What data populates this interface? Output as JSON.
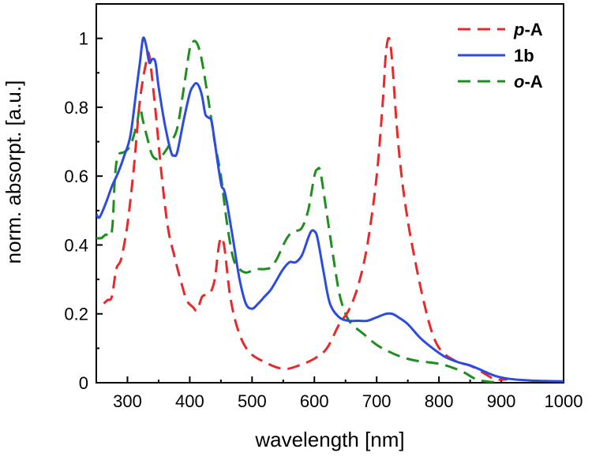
{
  "chart_data": {
    "type": "line",
    "title": "",
    "xlabel": "wavelength [nm]",
    "ylabel": "norm. absorpt. [a.u.]",
    "xlim": [
      250,
      1000
    ],
    "ylim": [
      0,
      1.1
    ],
    "x_ticks": [
      300,
      400,
      500,
      600,
      700,
      800,
      900,
      1000
    ],
    "y_ticks": [
      0,
      0.2,
      0.4,
      0.6,
      0.8,
      1
    ],
    "legend": {
      "placement": "top-right"
    },
    "series": [
      {
        "name": "p-A",
        "name_prefix": "p",
        "name_suffix": "-A",
        "color": "#e8292b",
        "dash": "dashed",
        "points": [
          [
            262,
            0.23
          ],
          [
            268,
            0.24
          ],
          [
            275,
            0.25
          ],
          [
            282,
            0.33
          ],
          [
            290,
            0.36
          ],
          [
            300,
            0.46
          ],
          [
            310,
            0.62
          ],
          [
            320,
            0.82
          ],
          [
            330,
            0.93
          ],
          [
            335,
            0.95
          ],
          [
            345,
            0.79
          ],
          [
            355,
            0.6
          ],
          [
            365,
            0.45
          ],
          [
            375,
            0.37
          ],
          [
            385,
            0.3
          ],
          [
            395,
            0.24
          ],
          [
            405,
            0.22
          ],
          [
            412,
            0.21
          ],
          [
            420,
            0.25
          ],
          [
            432,
            0.26
          ],
          [
            440,
            0.3
          ],
          [
            448,
            0.41
          ],
          [
            455,
            0.4
          ],
          [
            465,
            0.25
          ],
          [
            478,
            0.15
          ],
          [
            495,
            0.09
          ],
          [
            520,
            0.06
          ],
          [
            550,
            0.04
          ],
          [
            575,
            0.05
          ],
          [
            600,
            0.07
          ],
          [
            620,
            0.1
          ],
          [
            640,
            0.17
          ],
          [
            655,
            0.21
          ],
          [
            670,
            0.28
          ],
          [
            685,
            0.4
          ],
          [
            700,
            0.6
          ],
          [
            710,
            0.82
          ],
          [
            715,
            0.96
          ],
          [
            720,
            1.0
          ],
          [
            725,
            0.93
          ],
          [
            732,
            0.75
          ],
          [
            740,
            0.6
          ],
          [
            750,
            0.47
          ],
          [
            760,
            0.37
          ],
          [
            775,
            0.24
          ],
          [
            790,
            0.14
          ],
          [
            805,
            0.09
          ],
          [
            830,
            0.06
          ],
          [
            850,
            0.05
          ],
          [
            870,
            0.03
          ],
          [
            890,
            0.01
          ],
          [
            910,
            0.01
          ]
        ]
      },
      {
        "name": "1b",
        "color": "#2c4be0",
        "dash": "solid",
        "points": [
          [
            250,
            0.49
          ],
          [
            255,
            0.48
          ],
          [
            265,
            0.52
          ],
          [
            275,
            0.57
          ],
          [
            285,
            0.61
          ],
          [
            295,
            0.66
          ],
          [
            305,
            0.72
          ],
          [
            315,
            0.86
          ],
          [
            320,
            0.93
          ],
          [
            325,
            1.0
          ],
          [
            330,
            0.98
          ],
          [
            335,
            0.93
          ],
          [
            340,
            0.94
          ],
          [
            345,
            0.93
          ],
          [
            350,
            0.86
          ],
          [
            360,
            0.75
          ],
          [
            370,
            0.67
          ],
          [
            375,
            0.66
          ],
          [
            380,
            0.67
          ],
          [
            390,
            0.76
          ],
          [
            400,
            0.84
          ],
          [
            405,
            0.86
          ],
          [
            410,
            0.87
          ],
          [
            415,
            0.86
          ],
          [
            420,
            0.83
          ],
          [
            425,
            0.78
          ],
          [
            430,
            0.77
          ],
          [
            435,
            0.76
          ],
          [
            440,
            0.7
          ],
          [
            450,
            0.58
          ],
          [
            455,
            0.56
          ],
          [
            460,
            0.52
          ],
          [
            470,
            0.41
          ],
          [
            480,
            0.3
          ],
          [
            490,
            0.23
          ],
          [
            500,
            0.215
          ],
          [
            510,
            0.23
          ],
          [
            520,
            0.25
          ],
          [
            530,
            0.27
          ],
          [
            540,
            0.3
          ],
          [
            550,
            0.33
          ],
          [
            560,
            0.35
          ],
          [
            570,
            0.35
          ],
          [
            580,
            0.37
          ],
          [
            590,
            0.42
          ],
          [
            595,
            0.44
          ],
          [
            600,
            0.44
          ],
          [
            605,
            0.42
          ],
          [
            615,
            0.32
          ],
          [
            625,
            0.23
          ],
          [
            640,
            0.19
          ],
          [
            655,
            0.18
          ],
          [
            670,
            0.18
          ],
          [
            685,
            0.18
          ],
          [
            700,
            0.19
          ],
          [
            715,
            0.2
          ],
          [
            725,
            0.2
          ],
          [
            735,
            0.19
          ],
          [
            750,
            0.17
          ],
          [
            770,
            0.13
          ],
          [
            790,
            0.1
          ],
          [
            810,
            0.075
          ],
          [
            830,
            0.06
          ],
          [
            850,
            0.05
          ],
          [
            870,
            0.035
          ],
          [
            890,
            0.02
          ],
          [
            910,
            0.012
          ],
          [
            940,
            0.007
          ],
          [
            970,
            0.005
          ],
          [
            1000,
            0.004
          ]
        ]
      },
      {
        "name": "o-A",
        "name_prefix": "o",
        "name_suffix": "-A",
        "color": "#1e8e1e",
        "dash": "dashed",
        "points": [
          [
            250,
            0.42
          ],
          [
            258,
            0.42
          ],
          [
            265,
            0.43
          ],
          [
            275,
            0.44
          ],
          [
            280,
            0.6
          ],
          [
            285,
            0.66
          ],
          [
            295,
            0.67
          ],
          [
            305,
            0.69
          ],
          [
            315,
            0.75
          ],
          [
            320,
            0.8
          ],
          [
            325,
            0.76
          ],
          [
            332,
            0.71
          ],
          [
            340,
            0.66
          ],
          [
            350,
            0.65
          ],
          [
            360,
            0.67
          ],
          [
            370,
            0.7
          ],
          [
            380,
            0.74
          ],
          [
            390,
            0.85
          ],
          [
            400,
            0.97
          ],
          [
            405,
            0.99
          ],
          [
            410,
            0.99
          ],
          [
            415,
            0.97
          ],
          [
            420,
            0.93
          ],
          [
            430,
            0.82
          ],
          [
            440,
            0.7
          ],
          [
            450,
            0.6
          ],
          [
            460,
            0.46
          ],
          [
            470,
            0.36
          ],
          [
            480,
            0.33
          ],
          [
            490,
            0.32
          ],
          [
            500,
            0.325
          ],
          [
            510,
            0.33
          ],
          [
            520,
            0.33
          ],
          [
            530,
            0.335
          ],
          [
            540,
            0.36
          ],
          [
            550,
            0.4
          ],
          [
            560,
            0.43
          ],
          [
            570,
            0.44
          ],
          [
            580,
            0.45
          ],
          [
            590,
            0.5
          ],
          [
            600,
            0.6
          ],
          [
            605,
            0.62
          ],
          [
            610,
            0.61
          ],
          [
            620,
            0.49
          ],
          [
            630,
            0.37
          ],
          [
            640,
            0.26
          ],
          [
            650,
            0.2
          ],
          [
            660,
            0.17
          ],
          [
            680,
            0.14
          ],
          [
            700,
            0.11
          ],
          [
            720,
            0.09
          ],
          [
            740,
            0.075
          ],
          [
            760,
            0.065
          ],
          [
            780,
            0.06
          ],
          [
            800,
            0.055
          ],
          [
            820,
            0.045
          ],
          [
            840,
            0.03
          ],
          [
            860,
            0.01
          ],
          [
            880,
            0.003
          ],
          [
            900,
            0.0
          ]
        ]
      }
    ]
  }
}
